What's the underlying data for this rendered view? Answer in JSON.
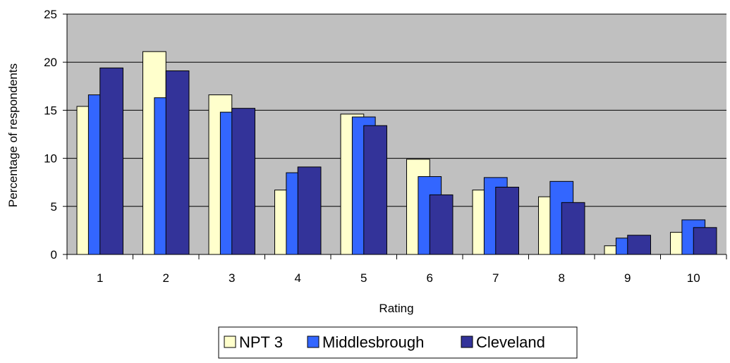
{
  "chart_data": {
    "type": "bar",
    "categories": [
      "1",
      "2",
      "3",
      "4",
      "5",
      "6",
      "7",
      "8",
      "9",
      "10"
    ],
    "series": [
      {
        "name": "NPT 3",
        "color": "#FFFFCC",
        "values": [
          15.4,
          21.1,
          16.6,
          6.7,
          14.6,
          9.9,
          6.7,
          6.0,
          0.9,
          2.3
        ]
      },
      {
        "name": "Middlesbrough",
        "color": "#3366FF",
        "values": [
          16.6,
          16.3,
          14.8,
          8.5,
          14.3,
          8.1,
          8.0,
          7.6,
          1.7,
          3.6
        ]
      },
      {
        "name": "Cleveland",
        "color": "#333399",
        "values": [
          19.4,
          19.1,
          15.2,
          9.1,
          13.4,
          6.2,
          7.0,
          5.4,
          2.0,
          2.8
        ]
      }
    ],
    "xlabel": "Rating",
    "ylabel": "Percentage of respondents",
    "ylim": [
      0,
      25
    ],
    "yticks": [
      0,
      5,
      10,
      15,
      20,
      25
    ],
    "grid": true,
    "plot_background": "#C0C0C0",
    "legend_position": "bottom-center"
  }
}
